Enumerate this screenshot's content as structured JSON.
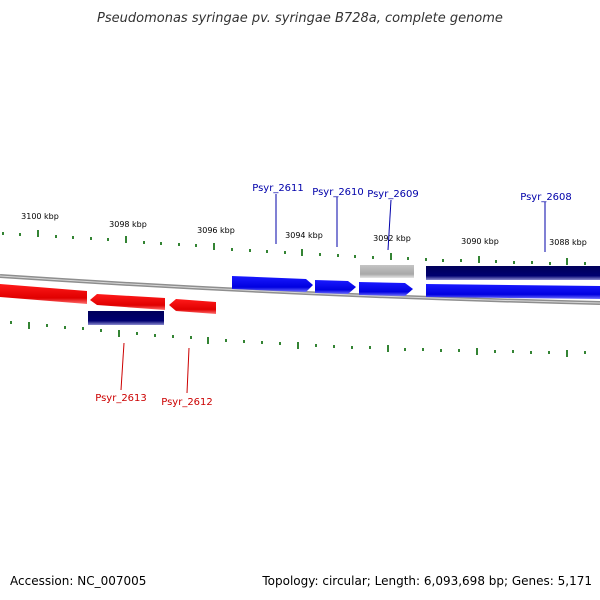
{
  "title": "Pseudomonas syringae pv. syringae B728a, complete genome",
  "ruler": {
    "labels": [
      "3100 kbp",
      "3098 kbp",
      "3096 kbp",
      "3094 kbp",
      "3092 kbp",
      "3090 kbp",
      "3088 kbp"
    ]
  },
  "genes": {
    "forward": [
      "Psyr_2611",
      "Psyr_2610",
      "Psyr_2609",
      "Psyr_2608"
    ],
    "reverse": [
      "Psyr_2613",
      "Psyr_2612"
    ]
  },
  "footer": {
    "accession": "Accession: NC_007005",
    "summary": "Topology: circular; Length: 6,093,698 bp; Genes: 5,171"
  },
  "colors": {
    "forward_label": "#0000aa",
    "reverse_label": "#cc0000",
    "forward_gene": "#0000ee",
    "reverse_gene": "#ee0000",
    "dark_feature": "#000066",
    "pseudo_gene": "#aaaaaa",
    "backbone": "#888888",
    "tick": "#006600"
  }
}
